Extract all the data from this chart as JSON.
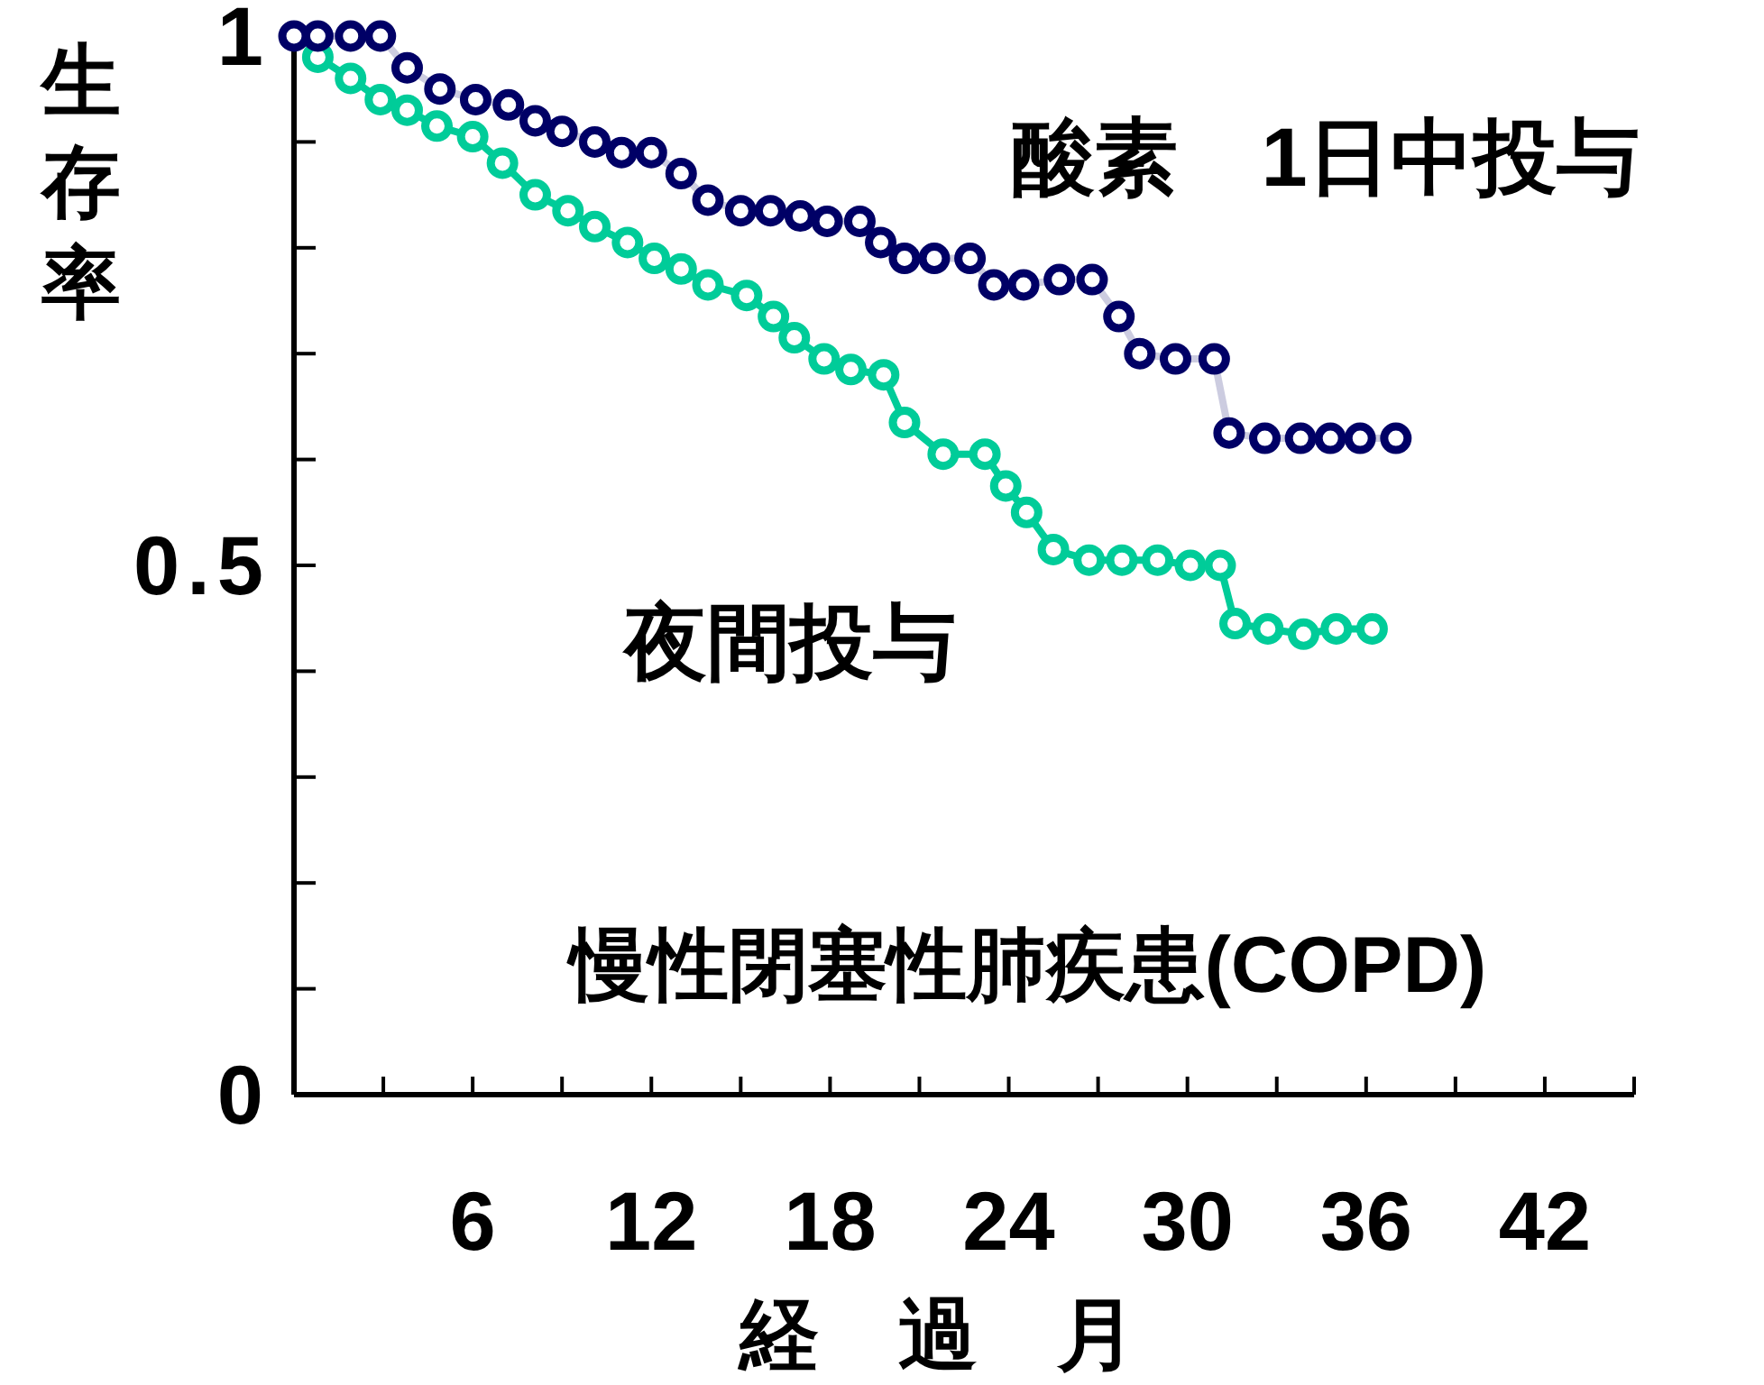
{
  "chart_data": {
    "type": "line",
    "title": "慢性閉塞性肺疾患(COPD)",
    "xlabel": "経　過　月",
    "ylabel": "生存率",
    "xlim": [
      0,
      45
    ],
    "ylim": [
      0,
      1
    ],
    "xticks": [
      {
        "value": 3,
        "label": null
      },
      6,
      {
        "value": 9,
        "label": null
      },
      12,
      {
        "value": 15,
        "label": null
      },
      18,
      {
        "value": 21,
        "label": null
      },
      24,
      {
        "value": 27,
        "label": null
      },
      30,
      {
        "value": 33,
        "label": null
      },
      36,
      {
        "value": 39,
        "label": null
      },
      42,
      {
        "value": 45,
        "label": null
      }
    ],
    "yticks": [
      0,
      {
        "value": 0.1,
        "label": null
      },
      {
        "value": 0.2,
        "label": null
      },
      {
        "value": 0.3,
        "label": null
      },
      {
        "value": 0.4,
        "label": null
      },
      0.5,
      {
        "value": 0.6,
        "label": null
      },
      {
        "value": 0.7,
        "label": null
      },
      {
        "value": 0.8,
        "label": null
      },
      {
        "value": 0.9,
        "label": null
      },
      1
    ],
    "grid": false,
    "marker": "circle",
    "line_style": "solid",
    "series": [
      {
        "name": "酸素　1日中投与",
        "color": "#000066",
        "x": [
          0,
          0.8,
          1.9,
          2.9,
          3.8,
          4.9,
          6.1,
          7.2,
          8.1,
          9.0,
          10.1,
          11.0,
          12.0,
          13.0,
          13.9,
          15.0,
          16.0,
          17.0,
          17.9,
          19.0,
          19.7,
          20.5,
          21.5,
          22.7,
          23.5,
          24.5,
          25.7,
          26.8,
          27.7,
          28.4,
          29.6,
          30.9,
          31.4,
          32.6,
          33.8,
          34.8,
          35.8,
          37.0
        ],
        "values": [
          1.0,
          1.0,
          1.0,
          1.0,
          0.97,
          0.95,
          0.94,
          0.935,
          0.92,
          0.91,
          0.9,
          0.89,
          0.89,
          0.87,
          0.845,
          0.835,
          0.835,
          0.83,
          0.825,
          0.825,
          0.805,
          0.79,
          0.79,
          0.79,
          0.765,
          0.765,
          0.77,
          0.77,
          0.735,
          0.7,
          0.695,
          0.695,
          0.625,
          0.62,
          0.62,
          0.62,
          0.62,
          0.62
        ]
      },
      {
        "name": "夜間投与",
        "color": "#00cc99",
        "x": [
          0.8,
          1.9,
          2.9,
          3.8,
          4.8,
          6.0,
          7.0,
          8.1,
          9.2,
          10.1,
          11.2,
          12.1,
          13.0,
          13.9,
          15.2,
          16.1,
          16.8,
          17.8,
          18.7,
          19.8,
          20.5,
          21.8,
          23.2,
          23.9,
          24.6,
          25.5,
          26.7,
          27.8,
          29.0,
          30.1,
          31.1,
          31.6,
          32.7,
          33.9,
          35.0,
          36.2
        ],
        "values": [
          0.98,
          0.96,
          0.94,
          0.93,
          0.915,
          0.905,
          0.88,
          0.85,
          0.835,
          0.82,
          0.805,
          0.79,
          0.78,
          0.765,
          0.755,
          0.735,
          0.715,
          0.695,
          0.685,
          0.68,
          0.635,
          0.605,
          0.605,
          0.575,
          0.55,
          0.515,
          0.505,
          0.505,
          0.505,
          0.5,
          0.5,
          0.445,
          0.44,
          0.435,
          0.44,
          0.44
        ]
      }
    ]
  }
}
